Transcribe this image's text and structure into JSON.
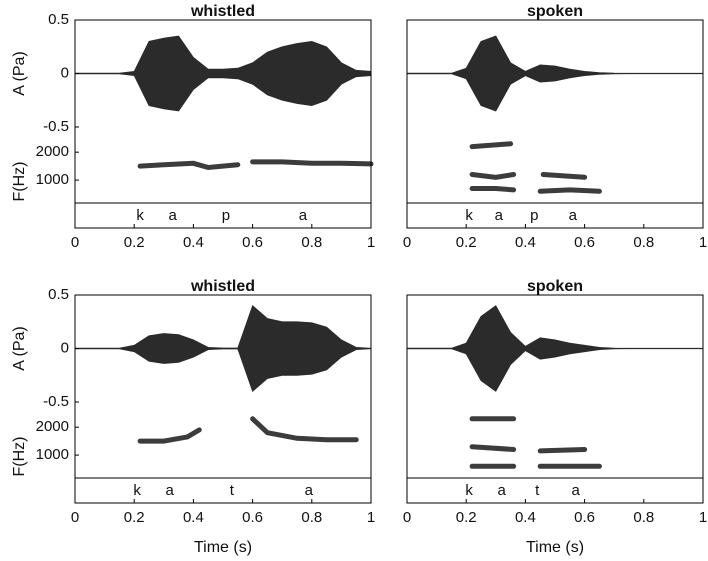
{
  "chart_data": [
    {
      "type": "waveform",
      "title": "whistled",
      "amplitude_label": "A (Pa)",
      "frequency_label": "F(Hz)",
      "amplitude_ylim": [
        -0.5,
        0.5
      ],
      "amplitude_yticks": [
        -0.5,
        0,
        0.5
      ],
      "frequency_ylim": [
        180,
        2900
      ],
      "frequency_yticks": [
        1000,
        2000
      ],
      "xlim": [
        0,
        1
      ],
      "xticks": [
        0,
        0.2,
        0.4,
        0.6,
        0.8,
        1
      ],
      "x": [
        0,
        0.05,
        0.1,
        0.15,
        0.2,
        0.25,
        0.3,
        0.35,
        0.4,
        0.45,
        0.5,
        0.55,
        0.6,
        0.65,
        0.7,
        0.75,
        0.8,
        0.85,
        0.9,
        0.95,
        1
      ],
      "amplitude": [
        0.003,
        0.003,
        0.003,
        0.003,
        0.02,
        0.3,
        0.33,
        0.35,
        0.15,
        0.04,
        0.04,
        0.05,
        0.1,
        0.2,
        0.25,
        0.28,
        0.3,
        0.25,
        0.1,
        0.03,
        0.02
      ],
      "tracks": [
        {
          "x": [
            0.22,
            0.3,
            0.4,
            0.45,
            0.55
          ],
          "values": [
            1500,
            1550,
            1600,
            1450,
            1550
          ]
        },
        {
          "x": [
            0.6,
            0.7,
            0.8,
            0.9,
            1.0
          ],
          "values": [
            1650,
            1650,
            1600,
            1600,
            1580
          ]
        }
      ],
      "segments": [
        {
          "label": "k",
          "x": 0.22
        },
        {
          "label": "a",
          "x": 0.33
        },
        {
          "label": "p",
          "x": 0.51
        },
        {
          "label": "a",
          "x": 0.77
        }
      ]
    },
    {
      "type": "waveform",
      "title": "spoken",
      "amplitude_ylim": [
        -0.5,
        0.5
      ],
      "frequency_ylim": [
        180,
        2900
      ],
      "xlim": [
        0,
        1
      ],
      "xticks": [
        0,
        0.2,
        0.4,
        0.6,
        0.8,
        1
      ],
      "x": [
        0,
        0.05,
        0.1,
        0.15,
        0.2,
        0.25,
        0.3,
        0.35,
        0.4,
        0.45,
        0.5,
        0.55,
        0.6,
        0.65,
        0.7,
        0.75,
        0.8,
        0.85,
        0.9,
        0.95,
        1
      ],
      "amplitude": [
        0.003,
        0.003,
        0.003,
        0.003,
        0.05,
        0.3,
        0.35,
        0.1,
        0.02,
        0.08,
        0.07,
        0.04,
        0.02,
        0.008,
        0.003,
        0.002,
        0.002,
        0.002,
        0.002,
        0.002,
        0.002
      ],
      "tracks": [
        {
          "x": [
            0.22,
            0.3,
            0.36
          ],
          "values": [
            700,
            700,
            650
          ]
        },
        {
          "x": [
            0.45,
            0.55,
            0.65
          ],
          "values": [
            600,
            650,
            600
          ]
        },
        {
          "x": [
            0.22,
            0.3,
            0.36
          ],
          "values": [
            1200,
            1100,
            1200
          ]
        },
        {
          "x": [
            0.46,
            0.6
          ],
          "values": [
            1200,
            1100
          ]
        },
        {
          "x": [
            0.22,
            0.35
          ],
          "values": [
            2200,
            2300
          ]
        }
      ],
      "segments": [
        {
          "label": "k",
          "x": 0.21
        },
        {
          "label": "a",
          "x": 0.31
        },
        {
          "label": "p",
          "x": 0.43
        },
        {
          "label": "a",
          "x": 0.56
        }
      ]
    },
    {
      "type": "waveform",
      "title": "whistled",
      "amplitude_label": "A (Pa)",
      "frequency_label": "F(Hz)",
      "xlabel": "Time (s)",
      "amplitude_ylim": [
        -0.5,
        0.5
      ],
      "amplitude_yticks": [
        -0.5,
        0,
        0.5
      ],
      "frequency_ylim": [
        180,
        2900
      ],
      "frequency_yticks": [
        1000,
        2000
      ],
      "xlim": [
        0,
        1
      ],
      "xticks": [
        0,
        0.2,
        0.4,
        0.6,
        0.8,
        1
      ],
      "x": [
        0,
        0.05,
        0.1,
        0.15,
        0.2,
        0.25,
        0.3,
        0.35,
        0.4,
        0.45,
        0.5,
        0.55,
        0.6,
        0.65,
        0.7,
        0.75,
        0.8,
        0.85,
        0.9,
        0.95,
        1
      ],
      "amplitude": [
        0.003,
        0.003,
        0.003,
        0.003,
        0.03,
        0.12,
        0.14,
        0.13,
        0.08,
        0.01,
        0.005,
        0.005,
        0.4,
        0.28,
        0.25,
        0.25,
        0.24,
        0.2,
        0.08,
        0.01,
        0.003
      ],
      "tracks": [
        {
          "x": [
            0.22,
            0.3,
            0.38,
            0.42
          ],
          "values": [
            1500,
            1500,
            1650,
            1900
          ]
        },
        {
          "x": [
            0.6,
            0.65,
            0.75,
            0.85,
            0.95
          ],
          "values": [
            2300,
            1800,
            1600,
            1550,
            1550
          ]
        }
      ],
      "segments": [
        {
          "label": "k",
          "x": 0.21
        },
        {
          "label": "a",
          "x": 0.32
        },
        {
          "label": "t",
          "x": 0.53
        },
        {
          "label": "a",
          "x": 0.79
        }
      ]
    },
    {
      "type": "waveform",
      "title": "spoken",
      "xlabel": "Time (s)",
      "amplitude_ylim": [
        -0.5,
        0.5
      ],
      "frequency_ylim": [
        180,
        2900
      ],
      "xlim": [
        0,
        1
      ],
      "xticks": [
        0,
        0.2,
        0.4,
        0.6,
        0.8,
        1
      ],
      "x": [
        0,
        0.05,
        0.1,
        0.15,
        0.2,
        0.25,
        0.3,
        0.35,
        0.4,
        0.45,
        0.5,
        0.55,
        0.6,
        0.65,
        0.7,
        0.75,
        0.8,
        0.85,
        0.9,
        0.95,
        1
      ],
      "amplitude": [
        0.003,
        0.003,
        0.003,
        0.003,
        0.05,
        0.3,
        0.4,
        0.15,
        0.02,
        0.1,
        0.08,
        0.05,
        0.03,
        0.01,
        0.003,
        0.002,
        0.002,
        0.002,
        0.002,
        0.002,
        0.002
      ],
      "tracks": [
        {
          "x": [
            0.22,
            0.36
          ],
          "values": [
            600,
            600
          ]
        },
        {
          "x": [
            0.45,
            0.65
          ],
          "values": [
            600,
            600
          ]
        },
        {
          "x": [
            0.22,
            0.36
          ],
          "values": [
            1300,
            1200
          ]
        },
        {
          "x": [
            0.45,
            0.6
          ],
          "values": [
            1150,
            1200
          ]
        },
        {
          "x": [
            0.22,
            0.36
          ],
          "values": [
            2300,
            2300
          ]
        }
      ],
      "segments": [
        {
          "label": "k",
          "x": 0.21
        },
        {
          "label": "a",
          "x": 0.32
        },
        {
          "label": "t",
          "x": 0.44
        },
        {
          "label": "a",
          "x": 0.57
        }
      ]
    }
  ]
}
